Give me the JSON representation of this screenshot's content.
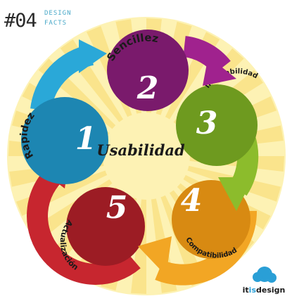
{
  "header": {
    "number": "#04",
    "tag_line1": "DESIGN",
    "tag_line2": "FACTS"
  },
  "center_label": "Usabilidad",
  "steps": [
    {
      "number": "1",
      "label": "Rapidez",
      "color": "#2aa8d8",
      "dark": "#1d86b2"
    },
    {
      "number": "2",
      "label": "Sencillez",
      "color": "#a0228e",
      "dark": "#7a1a6c"
    },
    {
      "number": "3",
      "label": "Indexabilidad",
      "color": "#8cbc2c",
      "dark": "#6e9a1f"
    },
    {
      "number": "4",
      "label": "Compatibilidad",
      "color": "#f2a624",
      "dark": "#d88a12"
    },
    {
      "number": "5",
      "label": "Actualización",
      "color": "#c7262f",
      "dark": "#9c1c24"
    }
  ],
  "brand": {
    "part1": "it",
    "part2": "is",
    "part3": "design",
    "accent": "#2a9fd6"
  },
  "colors": {
    "sunburst_bg": "#fdf2b4",
    "sunburst_ray": "#fae48c",
    "center_text": "#1a1a1a"
  }
}
